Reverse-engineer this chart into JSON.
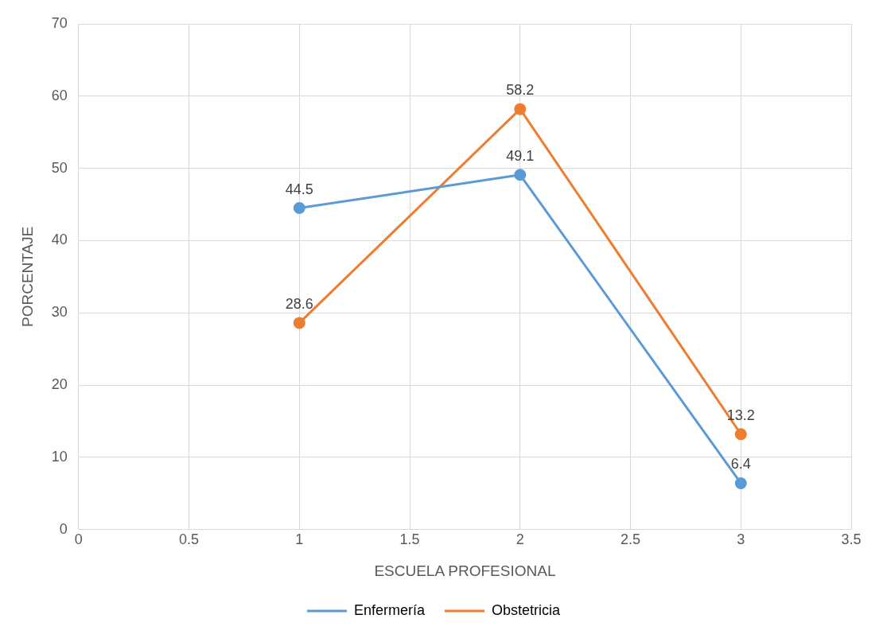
{
  "chart_data": {
    "type": "line",
    "xlabel": "ESCUELA PROFESIONAL",
    "ylabel": "PORCENTAJE",
    "x": [
      1,
      2,
      3
    ],
    "series": [
      {
        "name": "Enfermería",
        "color": "#5b9bd5",
        "values": [
          44.5,
          49.1,
          6.4
        ]
      },
      {
        "name": "Obstetricia",
        "color": "#ed7d31",
        "values": [
          28.6,
          58.2,
          13.2
        ]
      }
    ],
    "xlim": [
      0,
      3.5
    ],
    "xticks": [
      0,
      0.5,
      1,
      1.5,
      2,
      2.5,
      3,
      3.5
    ],
    "ylim": [
      0,
      70
    ],
    "yticks": [
      0,
      10,
      20,
      30,
      40,
      50,
      60,
      70
    ],
    "grid": true,
    "legend": "bottom",
    "marker": "circle",
    "line_style": "solid",
    "data_labels": true
  }
}
